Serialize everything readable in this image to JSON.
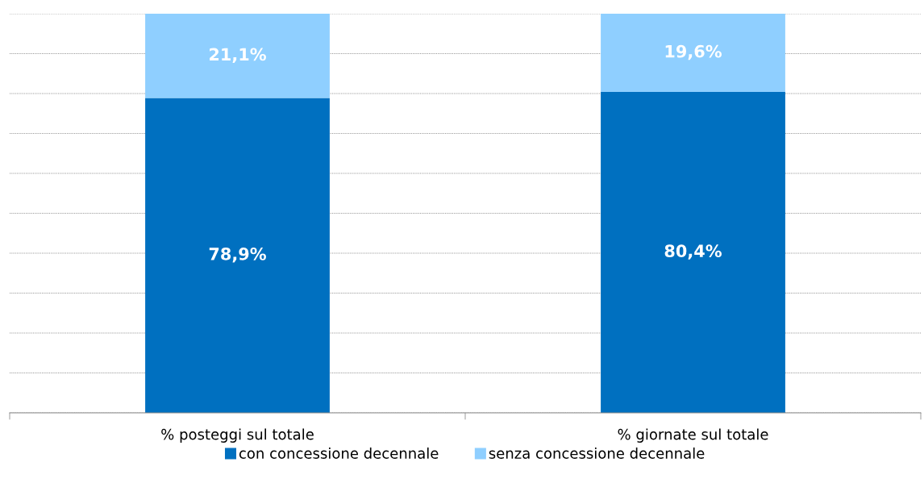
{
  "chart_data": {
    "type": "bar",
    "stacked": true,
    "categories": [
      "% posteggi sul totale",
      "% giornate sul totale"
    ],
    "series": [
      {
        "name": "con concessione decennale",
        "color": "#0070c0",
        "values": [
          78.9,
          80.4
        ],
        "value_labels": [
          "78,9%",
          "80,4%"
        ]
      },
      {
        "name": "senza concessione decennale",
        "color": "#8fcfff",
        "values": [
          21.1,
          19.6
        ],
        "value_labels": [
          "21,1%",
          "19,6%"
        ]
      }
    ],
    "ylim": [
      0,
      100
    ],
    "yticks": [
      {
        "value": 0,
        "label": null
      },
      {
        "value": 10,
        "label": null
      },
      {
        "value": 20,
        "label": null
      },
      {
        "value": 30,
        "label": null
      },
      {
        "value": 40,
        "label": null
      },
      {
        "value": 50,
        "label": null
      },
      {
        "value": 60,
        "label": null
      },
      {
        "value": 70,
        "label": null
      },
      {
        "value": 80,
        "label": null
      },
      {
        "value": 90,
        "label": null
      },
      {
        "value": 100,
        "label": null
      }
    ],
    "tick_labels": "x",
    "grid": "y",
    "legend": "bottom"
  }
}
